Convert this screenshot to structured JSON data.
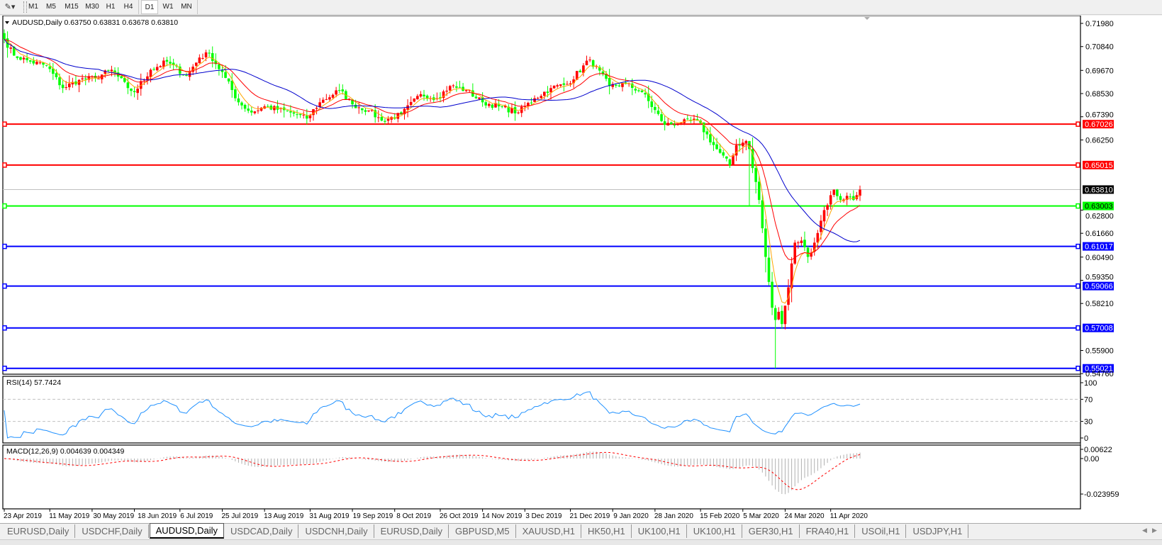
{
  "toolbar": {
    "timeframes": [
      "M1",
      "M5",
      "M15",
      "M30",
      "H1",
      "H4",
      "D1",
      "W1",
      "MN"
    ],
    "active_timeframe": "D1"
  },
  "chart": {
    "header": "AUDUSD,Daily  0.63750 0.63831 0.63678 0.63810",
    "rsi_label": "RSI(14) 57.7424",
    "macd_label": "MACD(12,26,9) 0.004639 0.004349",
    "current_price": "0.63810",
    "price_ticks": [
      "0.71980",
      "0.70840",
      "0.69670",
      "0.68530",
      "0.67390",
      "0.66250",
      "0.62800",
      "0.61660",
      "0.60490",
      "0.59350",
      "0.58210",
      "0.55900",
      "0.54760"
    ],
    "rsi_ticks": [
      "100",
      "70",
      "30",
      "0"
    ],
    "macd_ticks": [
      "0.00622",
      "0.00",
      "-0.023959"
    ],
    "levels": [
      {
        "price": "0.67026",
        "color": "#ff0000"
      },
      {
        "price": "0.65015",
        "color": "#ff0000"
      },
      {
        "price": "0.63003",
        "color": "#00ff00"
      },
      {
        "price": "0.61017",
        "color": "#0000ff"
      },
      {
        "price": "0.59066",
        "color": "#0000ff"
      },
      {
        "price": "0.57008",
        "color": "#0000ff"
      },
      {
        "price": "0.55021",
        "color": "#0000ff"
      }
    ],
    "date_labels": [
      "23 Apr 2019",
      "11 May 2019",
      "30 May 2019",
      "18 Jun 2019",
      "6 Jul 2019",
      "25 Jul 2019",
      "13 Aug 2019",
      "31 Aug 2019",
      "19 Sep 2019",
      "8 Oct 2019",
      "26 Oct 2019",
      "14 Nov 2019",
      "3 Dec 2019",
      "21 Dec 2019",
      "9 Jan 2020",
      "28 Jan 2020",
      "15 Feb 2020",
      "5 Mar 2020",
      "24 Mar 2020",
      "11 Apr 2020"
    ]
  },
  "chart_data": {
    "type": "candlestick",
    "symbol": "AUDUSD",
    "timeframe": "Daily",
    "bull_color": "#ff0000",
    "bear_color": "#00ff00",
    "ma_colors": [
      "#ffa500",
      "#ff0000",
      "#0000cd"
    ],
    "rsi_color": "#1e90ff",
    "ylim": [
      0.5476,
      0.7198
    ],
    "close_anchors": [
      [
        "2019-04-23",
        0.712
      ],
      [
        "2019-04-26",
        0.704
      ],
      [
        "2019-05-03",
        0.701
      ],
      [
        "2019-05-10",
        0.699
      ],
      [
        "2019-05-17",
        0.688
      ],
      [
        "2019-05-24",
        0.692
      ],
      [
        "2019-05-31",
        0.693
      ],
      [
        "2019-06-07",
        0.697
      ],
      [
        "2019-06-14",
        0.688
      ],
      [
        "2019-06-18",
        0.686
      ],
      [
        "2019-06-25",
        0.697
      ],
      [
        "2019-07-02",
        0.701
      ],
      [
        "2019-07-10",
        0.694
      ],
      [
        "2019-07-16",
        0.703
      ],
      [
        "2019-07-19",
        0.705
      ],
      [
        "2019-07-26",
        0.693
      ],
      [
        "2019-08-01",
        0.681
      ],
      [
        "2019-08-07",
        0.676
      ],
      [
        "2019-08-13",
        0.679
      ],
      [
        "2019-08-23",
        0.676
      ],
      [
        "2019-08-30",
        0.673
      ],
      [
        "2019-09-05",
        0.681
      ],
      [
        "2019-09-13",
        0.687
      ],
      [
        "2019-09-19",
        0.68
      ],
      [
        "2019-09-26",
        0.677
      ],
      [
        "2019-10-02",
        0.672
      ],
      [
        "2019-10-10",
        0.675
      ],
      [
        "2019-10-18",
        0.685
      ],
      [
        "2019-10-25",
        0.683
      ],
      [
        "2019-10-31",
        0.689
      ],
      [
        "2019-11-07",
        0.687
      ],
      [
        "2019-11-14",
        0.681
      ],
      [
        "2019-11-21",
        0.679
      ],
      [
        "2019-11-29",
        0.676
      ],
      [
        "2019-12-06",
        0.683
      ],
      [
        "2019-12-13",
        0.688
      ],
      [
        "2019-12-20",
        0.69
      ],
      [
        "2019-12-31",
        0.702
      ],
      [
        "2020-01-08",
        0.689
      ],
      [
        "2020-01-15",
        0.69
      ],
      [
        "2020-01-22",
        0.686
      ],
      [
        "2020-01-31",
        0.67
      ],
      [
        "2020-02-07",
        0.671
      ],
      [
        "2020-02-14",
        0.672
      ],
      [
        "2020-02-21",
        0.66
      ],
      [
        "2020-02-28",
        0.65
      ],
      [
        "2020-03-03",
        0.66
      ],
      [
        "2020-03-06",
        0.662
      ],
      [
        "2020-03-09",
        0.658
      ],
      [
        "2020-03-12",
        0.633
      ],
      [
        "2020-03-16",
        0.605
      ],
      [
        "2020-03-18",
        0.58
      ],
      [
        "2020-03-19",
        0.574
      ],
      [
        "2020-03-20",
        0.578
      ],
      [
        "2020-03-23",
        0.572
      ],
      [
        "2020-03-25",
        0.59
      ],
      [
        "2020-03-27",
        0.612
      ],
      [
        "2020-03-31",
        0.613
      ],
      [
        "2020-04-02",
        0.605
      ],
      [
        "2020-04-06",
        0.612
      ],
      [
        "2020-04-09",
        0.628
      ],
      [
        "2020-04-14",
        0.638
      ],
      [
        "2020-04-16",
        0.633
      ],
      [
        "2020-04-20",
        0.635
      ],
      [
        "2020-04-22",
        0.633
      ],
      [
        "2020-04-24",
        0.6381
      ]
    ],
    "low_overrides": [
      [
        "2020-03-09",
        0.63
      ],
      [
        "2020-03-19",
        0.5502
      ]
    ]
  },
  "tabs": [
    "EURUSD,Daily",
    "USDCHF,Daily",
    "AUDUSD,Daily",
    "USDCAD,Daily",
    "USDCNH,Daily",
    "EURUSD,Daily",
    "GBPUSD,M5",
    "XAUUSD,H1",
    "HK50,H1",
    "UK100,H1",
    "UK100,H1",
    "GER30,H1",
    "FRA40,H1",
    "USOil,H1",
    "USDJPY,H1"
  ],
  "active_tab": "AUDUSD,Daily"
}
